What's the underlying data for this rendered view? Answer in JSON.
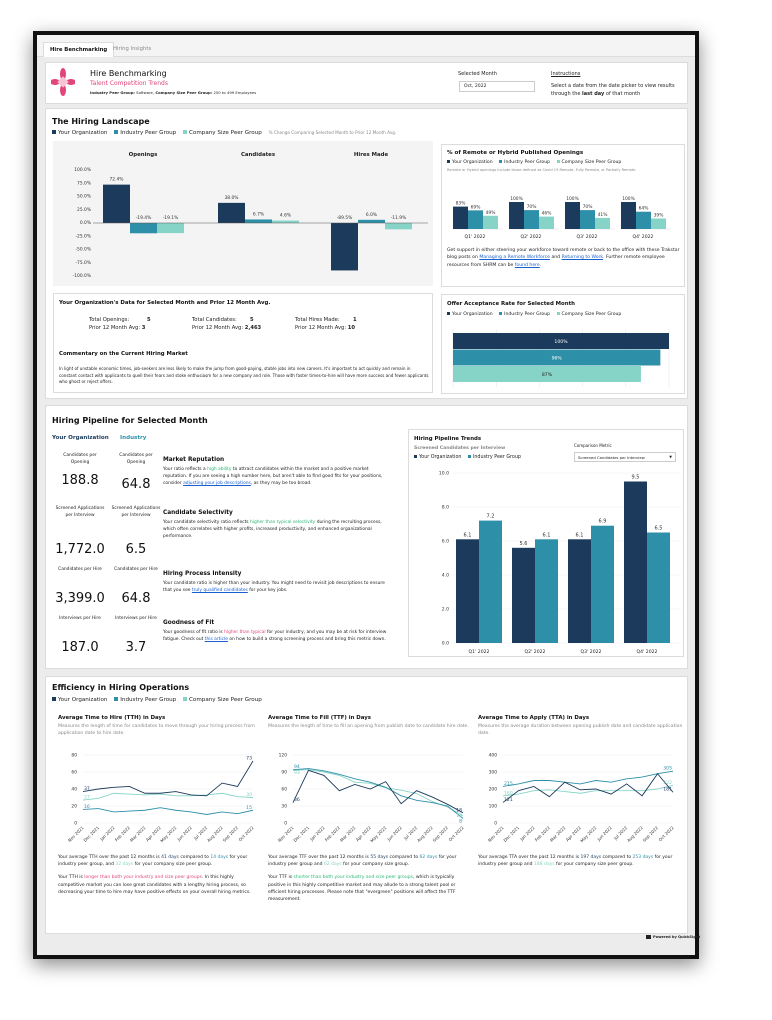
{
  "tabs": [
    {
      "label": "Hire Benchmarking",
      "active": true
    },
    {
      "label": "Hiring Insights",
      "active": false
    }
  ],
  "colors": {
    "org": "#1b3a5c",
    "industry": "#2e90a8",
    "company": "#86d4c7",
    "pink": "#e0457b",
    "green": "#2bb673",
    "link": "#1a5fd0"
  },
  "legend": {
    "org": "Your Organization",
    "industry": "Industry Peer Group",
    "company": "Company Size Peer Group"
  },
  "header": {
    "title": "Hire Benchmarking",
    "subtitle": "Talent Competition Trends",
    "peer_label_1": "Industry Peer Group:",
    "peer_value_1": " Software, ",
    "peer_label_2": "Company Size Peer Group:",
    "peer_value_2": " 250 to 499 Employees",
    "selected_month_label": "Selected Month",
    "selected_month_value": "Oct, 2022",
    "instructions_title": "Instructions",
    "instructions": [
      [
        "Select a date from the date picker to view results through the ",
        ""
      ],
      [
        "last day",
        "b"
      ],
      [
        " of that month",
        ""
      ]
    ]
  },
  "landscape": {
    "title": "The Hiring Landscape",
    "note": "% Change Comparing Selected Month to Prior 12 Month Avg.",
    "remote": {
      "title": "% of Remote or Hybrid Published Openings",
      "note": "Remote or Hybrid openings include those defined as Covid 19 Remote, Fully Remote, or Partially Remote",
      "text": [
        [
          "Get support in either steering your workforce toward remote or back to the office with these Trakstar blog posts on ",
          ""
        ],
        [
          "Managing a Remote Workforce",
          "link"
        ],
        [
          " and ",
          ""
        ],
        [
          "Returning to Work",
          "link"
        ],
        [
          ". Further remote employee resources from SHRM can be ",
          ""
        ],
        [
          "found here",
          "link"
        ],
        [
          ".",
          ""
        ]
      ]
    },
    "org_data": {
      "title": "Your Organization's Data for Selected Month and Prior 12 Month Avg.",
      "columns": [
        {
          "label": "Total Openings:",
          "value": "5",
          "avg_label": "Prior 12 Month Avg:",
          "avg_value": "3"
        },
        {
          "label": "Total Candidates:",
          "value": "5",
          "avg_label": "Prior 12 Month Avg:",
          "avg_value": "2,463"
        },
        {
          "label": "Total Hires Made:",
          "value": "1",
          "avg_label": "Prior 12 Month Avg:",
          "avg_value": "10"
        }
      ],
      "commentary_title": "Commentary on the Current Hiring Market",
      "commentary": "In light of unstable economic times, job-seekers are less likely to make the jump from good-paying, stable jobs into new careers. It's important to act quickly and remain in constant contact with applicants to quell their fears and stoke enthusiasm for a new company and role. Those with faster times-to-hire will have more success and fewer applicants who ghost or reject offers."
    },
    "offer": {
      "title": "Offer Acceptance Rate for Selected Month"
    }
  },
  "pipeline": {
    "title": "Hiring Pipeline for Selected Month",
    "org_header": "Your Organization",
    "industry_header": "Industry",
    "metrics": [
      {
        "org_label": "Candidates per Opening",
        "org_value": "188.8",
        "ind_label": "Candidates per Opening",
        "ind_value": "64.8",
        "heading": "Market Reputation",
        "text": [
          [
            "Your ratio reflects a ",
            ""
          ],
          [
            "high ability",
            "green"
          ],
          [
            " to attract candidates within the market and a positive market reputation. If you are seeing a high number here, but aren't able to find good fits for your positions, consider ",
            ""
          ],
          [
            "adjusting your job descriptions",
            "link"
          ],
          [
            ", as they may be too broad.",
            ""
          ]
        ]
      },
      {
        "org_label": "Screened Applications per Interview",
        "org_value": "1,772.0",
        "ind_label": "Screened Applications per Interview",
        "ind_value": "6.5",
        "heading": "Candidate Selectivity",
        "text": [
          [
            "Your candidate selectivity ratio reflects ",
            ""
          ],
          [
            "higher than typical selectivity",
            "green"
          ],
          [
            " during the recruiting process, which often correlates with higher profits, increased productivity, and enhanced organizational performance.",
            ""
          ]
        ]
      },
      {
        "org_label": "Candidates per Hire",
        "org_value": "3,399.0",
        "ind_label": "Candidates per Hire",
        "ind_value": "64.8",
        "heading": "Hiring Process Intensity",
        "text": [
          [
            "Your candidate ratio is higher than your industry. You might need to revisit job descriptions to ensure that you see ",
            ""
          ],
          [
            "truly qualified candidates",
            "link"
          ],
          [
            " for your key jobs.",
            ""
          ]
        ]
      },
      {
        "org_label": "Interviews per Hire",
        "org_value": "187.0",
        "ind_label": "Interviews per Hire",
        "ind_value": "3.7",
        "heading": "Goodness of Fit",
        "text": [
          [
            "Your goodness of fit ratio is ",
            ""
          ],
          [
            "higher than typical",
            "pink"
          ],
          [
            " for your industry, and you may be at risk for interview fatigue. Check out ",
            ""
          ],
          [
            "this article",
            "link"
          ],
          [
            " on how to build a strong screening process and bring this metric down.",
            ""
          ]
        ]
      }
    ],
    "trends": {
      "title": "Hiring Pipeline Trends",
      "subtitle": "Screened Candidates per Interview",
      "metric_label": "Comparison Metric",
      "metric_value": "Screened Candidates per Interview"
    }
  },
  "efficiency": {
    "title": "Efficiency in Hiring Operations",
    "charts": [
      {
        "title": "Average Time to Hire (TTH) in Days",
        "desc": "Measures the length of time for candidates to move through your hiring process from application date to hire date.",
        "paragraphs": [
          [
            [
              "Your average TTH over the past 12 months is ",
              ""
            ],
            [
              "41 days",
              "org"
            ],
            [
              " compared to ",
              ""
            ],
            [
              "14 days",
              "ind"
            ],
            [
              " for your industry peer group, and ",
              ""
            ],
            [
              "32 days",
              "comp"
            ],
            [
              " for your company size peer group.",
              ""
            ]
          ],
          [
            [
              "Your TTH is ",
              ""
            ],
            [
              "longer than both your industry and size peer groups",
              "pink"
            ],
            [
              ". In this highly competitive market you can lose great candidates with a lengthy hiring process, so decreasing your time to hire may have positive effects on your overall hiring metrics.",
              ""
            ]
          ]
        ]
      },
      {
        "title": "Average Time to Fill (TTF) in Days",
        "desc": "Measures the length of time to fill an opening from publish date to candidate hire date.",
        "paragraphs": [
          [
            [
              "Your average TTF over the past 12 months is ",
              ""
            ],
            [
              "55 days",
              "org"
            ],
            [
              " compared to ",
              ""
            ],
            [
              "62 days",
              "ind"
            ],
            [
              " for your industry peer group and ",
              ""
            ],
            [
              "62 days",
              "comp"
            ],
            [
              " for your company size group.",
              ""
            ]
          ],
          [
            [
              "Your TTF is ",
              ""
            ],
            [
              "shorter than both your industry and size peer groups",
              "green"
            ],
            [
              ", which is typically positive in this highly competitive market and may allude to a strong talent pool or efficient hiring processes. Please note that \"evergreen\" positions will affect the TTF measurement.",
              ""
            ]
          ]
        ]
      },
      {
        "title": "Average Time to Apply (TTA) in Days",
        "desc": "Measures the average duration between opening publish date and candidate application date.",
        "paragraphs": [
          [
            [
              "Your average TTA over the past 12 months is ",
              ""
            ],
            [
              "197 days",
              "org"
            ],
            [
              " compared to ",
              ""
            ],
            [
              "253 days",
              "ind"
            ],
            [
              " for your industry  peer group and ",
              ""
            ],
            [
              "188 days",
              "comp"
            ],
            [
              " for your company size peer group.",
              ""
            ]
          ]
        ]
      }
    ]
  },
  "footer": {
    "powered_by": "Powered by QuickSight"
  },
  "chart_data": [
    {
      "type": "bar",
      "groups": [
        "Openings",
        "Candidates",
        "Hires Made"
      ],
      "ylim": [
        -100,
        100
      ],
      "yticks": [
        "100.0%",
        "75.0%",
        "50.0%",
        "25.0%",
        "0.0%",
        "-25.0%",
        "-50.0%",
        "-75.0%",
        "-100.0%"
      ],
      "series": [
        {
          "name": "Your Organization",
          "key": "org",
          "values": [
            72.4,
            38.0,
            -89.5
          ]
        },
        {
          "name": "Industry Peer Group",
          "key": "industry",
          "values": [
            -19.4,
            6.7,
            6.0
          ]
        },
        {
          "name": "Company Size Peer Group",
          "key": "company",
          "values": [
            -19.1,
            4.6,
            -11.9
          ]
        }
      ],
      "unit": "%"
    },
    {
      "type": "bar",
      "categories": [
        "Q1' 2022",
        "Q2' 2022",
        "Q3' 2022",
        "Q4' 2022"
      ],
      "ylim": [
        0,
        100
      ],
      "series": [
        {
          "name": "Your Organization",
          "key": "org",
          "values": [
            83,
            100,
            100,
            100
          ]
        },
        {
          "name": "Industry Peer Group",
          "key": "industry",
          "values": [
            69,
            70,
            70,
            64
          ]
        },
        {
          "name": "Company Size Peer Group",
          "key": "company",
          "values": [
            49,
            46,
            41,
            39
          ]
        }
      ],
      "unit": "%"
    },
    {
      "type": "bar",
      "orientation": "horizontal",
      "xlim": [
        0,
        100
      ],
      "series": [
        {
          "name": "Your Organization",
          "key": "org",
          "value": 100
        },
        {
          "name": "Industry Peer Group",
          "key": "industry",
          "value": 96
        },
        {
          "name": "Company Size Peer Group",
          "key": "company",
          "value": 87
        }
      ],
      "unit": "%"
    },
    {
      "type": "bar",
      "categories": [
        "Q1' 2022",
        "Q2' 2022",
        "Q3' 2022",
        "Q4' 2022"
      ],
      "ylim": [
        0,
        10
      ],
      "yticks": [
        "10.0",
        "8.0",
        "6.0",
        "4.0",
        "2.0",
        "0.0"
      ],
      "series": [
        {
          "name": "Your Organization",
          "key": "org",
          "values": [
            6.1,
            5.6,
            6.1,
            9.5
          ]
        },
        {
          "name": "Industry Peer Group",
          "key": "industry",
          "values": [
            7.2,
            6.1,
            6.9,
            6.5
          ]
        }
      ]
    },
    {
      "type": "line",
      "x": [
        "Nov 2021",
        "Dec 2021",
        "Jan 2022",
        "Feb 2022",
        "Mar 2022",
        "Apr 2022",
        "May 2022",
        "Jun 2022",
        "Jul 2022",
        "Aug 2022",
        "Sep 2022",
        "Oct 2022"
      ],
      "ylim": [
        0,
        80
      ],
      "yticks": [
        0,
        20,
        40,
        60,
        80
      ],
      "series": [
        {
          "key": "org",
          "values": [
            37,
            40,
            42,
            43,
            35,
            35,
            37,
            33,
            32,
            47,
            43,
            73
          ]
        },
        {
          "key": "industry",
          "values": [
            16,
            17,
            13,
            14,
            15,
            18,
            15,
            13,
            10,
            13,
            11,
            15
          ]
        },
        {
          "key": "company",
          "values": [
            27,
            29,
            35,
            34,
            33,
            34,
            32,
            32,
            33,
            35,
            31,
            30
          ]
        }
      ]
    },
    {
      "type": "line",
      "x": [
        "Nov 2021",
        "Dec 2021",
        "Jan 2022",
        "Feb 2022",
        "Mar 2022",
        "Apr 2022",
        "May 2022",
        "Jun 2022",
        "Jul 2022",
        "Aug 2022",
        "Sep 2022",
        "Oct 2022"
      ],
      "ylim": [
        0,
        120
      ],
      "yticks": [
        0,
        30,
        60,
        90,
        120
      ],
      "series": [
        {
          "key": "org",
          "values": [
            36,
            93,
            84,
            57,
            68,
            60,
            73,
            34,
            57,
            46,
            33,
            18
          ]
        },
        {
          "key": "industry",
          "values": [
            94,
            96,
            92,
            86,
            78,
            72,
            63,
            48,
            40,
            36,
            30,
            8
          ]
        },
        {
          "key": "company",
          "values": [
            93,
            94,
            90,
            84,
            72,
            70,
            62,
            58,
            52,
            38,
            28,
            13
          ]
        }
      ]
    },
    {
      "type": "line",
      "x": [
        "Nov 2021",
        "Dec 2021",
        "Jan 2022",
        "Feb 2022",
        "Mar 2022",
        "Apr 2022",
        "May 2022",
        "Jun 2022",
        "Jul 2022",
        "Aug 2022",
        "Sep 2022",
        "Oct 2022"
      ],
      "ylim": [
        0,
        400
      ],
      "yticks": [
        0,
        100,
        200,
        300,
        400
      ],
      "series": [
        {
          "key": "org",
          "values": [
            121,
            190,
            215,
            155,
            240,
            195,
            200,
            170,
            230,
            160,
            290,
            181
          ]
        },
        {
          "key": "industry",
          "values": [
            215,
            230,
            250,
            250,
            240,
            230,
            250,
            240,
            260,
            270,
            290,
            305
          ]
        },
        {
          "key": "company",
          "values": [
            160,
            170,
            190,
            195,
            185,
            175,
            190,
            190,
            190,
            190,
            200,
            222
          ]
        }
      ]
    }
  ]
}
